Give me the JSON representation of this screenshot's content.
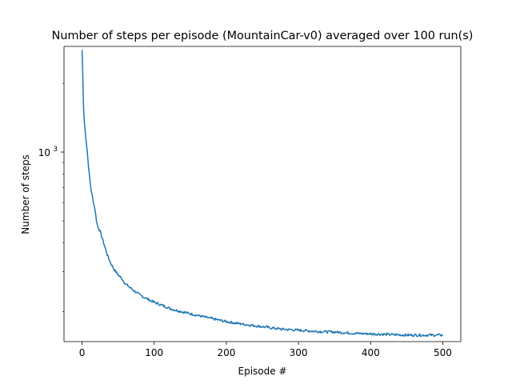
{
  "chart_data": {
    "type": "line",
    "title": "Number of steps per episode (MountainCar-v0) averaged over 100 run(s)",
    "xlabel": "Episode #",
    "ylabel": "Number of steps",
    "xlim": [
      -25,
      525
    ],
    "ylim": [
      148,
      2900
    ],
    "yscale": "log",
    "grid": false,
    "legend": "none",
    "xticks": [
      {
        "value": 0,
        "label": "0"
      },
      {
        "value": 100,
        "label": "100"
      },
      {
        "value": 200,
        "label": "200"
      },
      {
        "value": 300,
        "label": "300"
      },
      {
        "value": 400,
        "label": "400"
      },
      {
        "value": 500,
        "label": "500"
      }
    ],
    "yticks": [
      {
        "value": 1000,
        "base": "10",
        "exp": "3"
      }
    ],
    "series": [
      {
        "color": "#1f77b4",
        "x": [
          0,
          1,
          2,
          3,
          5,
          7,
          10,
          12,
          15,
          18,
          20,
          22,
          25,
          30,
          35,
          40,
          45,
          50,
          55,
          60,
          70,
          80,
          90,
          100,
          110,
          125,
          150,
          175,
          200,
          225,
          250,
          275,
          300,
          325,
          350,
          375,
          400,
          425,
          450,
          475,
          500
        ],
        "y": [
          2800,
          2200,
          1600,
          1380,
          1180,
          1020,
          800,
          700,
          620,
          560,
          500,
          470,
          450,
          400,
          355,
          325,
          305,
          290,
          280,
          265,
          250,
          237,
          228,
          220,
          214,
          205,
          196,
          188,
          181,
          176,
          172,
          168,
          166,
          164,
          163,
          161,
          160,
          159,
          158,
          158,
          158
        ]
      }
    ]
  }
}
